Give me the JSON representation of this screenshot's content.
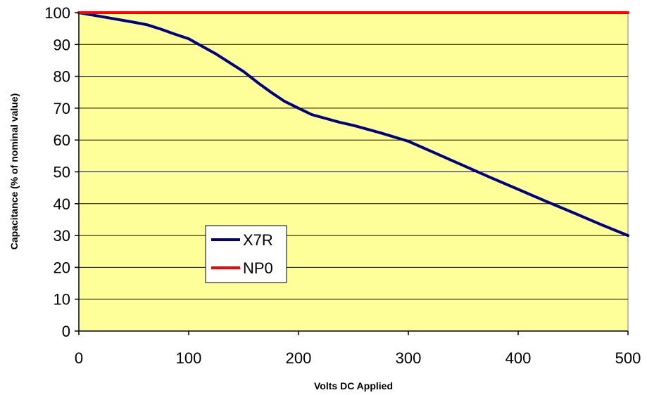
{
  "chart_data": {
    "type": "line",
    "xlabel": "Volts DC Applied",
    "ylabel": "Capacitance (% of nominal value)",
    "xlim": [
      0,
      500
    ],
    "ylim": [
      0,
      100
    ],
    "xticks": [
      0,
      100,
      200,
      300,
      400,
      500
    ],
    "yticks": [
      0,
      10,
      20,
      30,
      40,
      50,
      60,
      70,
      80,
      90,
      100
    ],
    "grid": "horizontal",
    "plot_background": "#FFFF99",
    "legend_position": "lower-left",
    "series": [
      {
        "name": "X7R",
        "color": "#000080",
        "x": [
          0,
          25,
          50,
          62,
          75,
          87,
          100,
          112,
          125,
          150,
          163,
          175,
          187,
          200,
          212,
          237,
          250,
          275,
          300,
          325,
          350,
          375,
          400,
          425,
          450,
          475,
          500
        ],
        "y": [
          100,
          98.5,
          97,
          96.2,
          94.8,
          93.3,
          91.8,
          89.5,
          87,
          81.5,
          78,
          75,
          72.2,
          70,
          68,
          65.6,
          64.6,
          62.2,
          59.6,
          55.8,
          52,
          48.2,
          44.5,
          40.8,
          37.2,
          33.5,
          30
        ]
      },
      {
        "name": "NP0",
        "color": "#FF0000",
        "x": [
          0,
          500
        ],
        "y": [
          100,
          100
        ]
      }
    ]
  }
}
